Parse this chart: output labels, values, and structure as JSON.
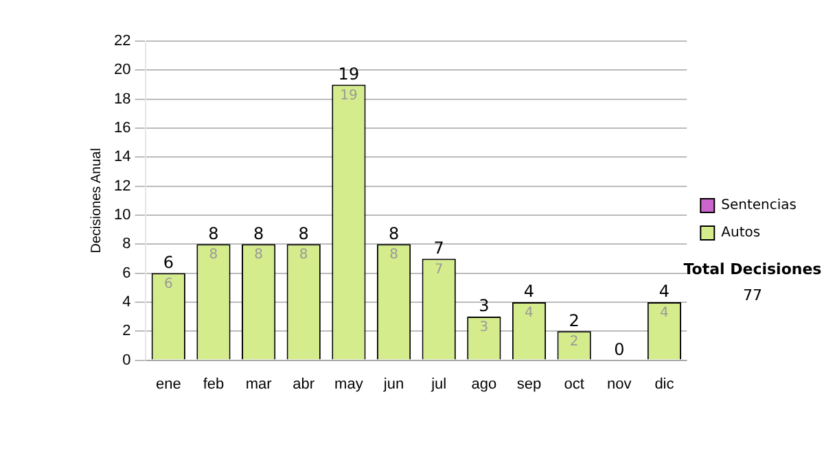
{
  "chart_data": {
    "type": "bar",
    "stacked": true,
    "ylabel": "Decisiones Anual",
    "categories": [
      "ene",
      "feb",
      "mar",
      "abr",
      "may",
      "jun",
      "jul",
      "ago",
      "sep",
      "oct",
      "nov",
      "dic"
    ],
    "series": [
      {
        "name": "Sentencias",
        "color": "#cc66cc",
        "values": [
          0,
          0,
          0,
          0,
          0,
          0,
          0,
          0,
          0,
          0,
          0,
          0
        ]
      },
      {
        "name": "Autos",
        "color": "#d4ec8c",
        "values": [
          6,
          8,
          8,
          8,
          19,
          8,
          7,
          3,
          4,
          2,
          0,
          4
        ],
        "value_labels": [
          "6",
          "8",
          "8",
          "8",
          "19",
          "8",
          "7",
          "3",
          "4",
          "2",
          null,
          "4"
        ]
      }
    ],
    "totals": [
      "6",
      "8",
      "8",
      "8",
      "19",
      "8",
      "7",
      "3",
      "4",
      "2",
      "0",
      "4"
    ],
    "ylim": [
      0,
      22
    ],
    "yticks": [
      0,
      2,
      4,
      6,
      8,
      10,
      12,
      14,
      16,
      18,
      20,
      22
    ],
    "grid": "y",
    "legend": "right",
    "annotations": [
      "Total Decisiones",
      "77"
    ]
  }
}
